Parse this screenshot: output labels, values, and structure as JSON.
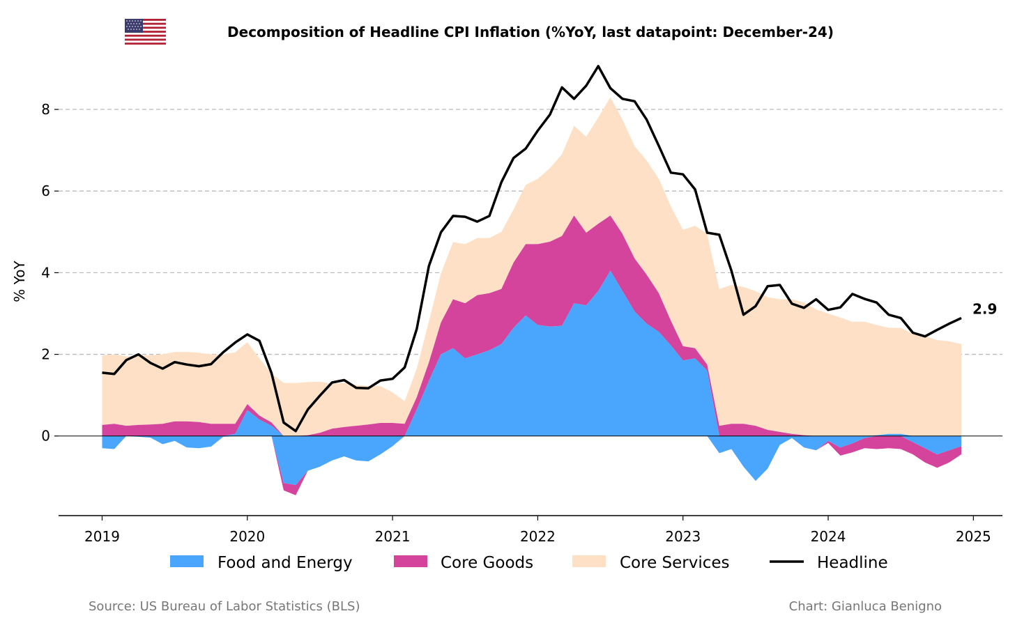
{
  "chart_data": {
    "type": "area",
    "title": "Decomposition of Headline CPI Inflation (%YoY, last datapoint: December-24)",
    "ylabel": "% YoY",
    "xlabel": "",
    "ylim": [
      -1.95,
      9.4
    ],
    "xlim": [
      2018.7,
      2025.2
    ],
    "yticks": [
      0,
      2,
      4,
      6,
      8
    ],
    "xticks": [
      2019,
      2020,
      2021,
      2022,
      2023,
      2024,
      2025
    ],
    "grid": "horizontal dashed",
    "legend_position": "bottom",
    "start": "2019-01",
    "end_label": "2.9",
    "series": [
      {
        "name": "Food and Energy",
        "color": "#4aa6fc",
        "values": [
          -0.3,
          -0.32,
          0.0,
          -0.02,
          -0.04,
          -0.2,
          -0.12,
          -0.28,
          -0.3,
          -0.26,
          -0.02,
          0.05,
          0.63,
          0.4,
          0.25,
          -1.15,
          -1.2,
          -0.85,
          -0.75,
          -0.6,
          -0.5,
          -0.6,
          -0.62,
          -0.45,
          -0.25,
          0.0,
          0.65,
          1.35,
          2.0,
          2.15,
          1.9,
          2.0,
          2.1,
          2.25,
          2.65,
          2.95,
          2.72,
          2.68,
          2.7,
          3.25,
          3.2,
          3.55,
          4.05,
          3.55,
          3.05,
          2.75,
          2.55,
          2.22,
          1.85,
          1.9,
          1.6,
          -0.42,
          -0.32,
          -0.75,
          -1.1,
          -0.8,
          -0.22,
          -0.05,
          -0.28,
          -0.35,
          -0.12,
          -0.28,
          -0.18,
          -0.05,
          0.02,
          0.05,
          0.05,
          -0.15,
          -0.3,
          -0.45,
          -0.35,
          -0.25
        ]
      },
      {
        "name": "Core Goods",
        "color": "#d4449c",
        "values": [
          0.27,
          0.3,
          0.25,
          0.27,
          0.28,
          0.3,
          0.36,
          0.36,
          0.34,
          0.3,
          0.3,
          0.25,
          0.15,
          0.1,
          0.08,
          -0.18,
          -0.25,
          0.02,
          0.08,
          0.18,
          0.22,
          0.25,
          0.28,
          0.32,
          0.32,
          0.3,
          0.3,
          0.45,
          0.78,
          1.2,
          1.35,
          1.45,
          1.4,
          1.35,
          1.6,
          1.75,
          1.98,
          2.08,
          2.2,
          2.15,
          1.78,
          1.65,
          1.35,
          1.4,
          1.3,
          1.2,
          0.95,
          0.6,
          0.35,
          0.25,
          0.15,
          0.25,
          0.3,
          0.3,
          0.25,
          0.15,
          0.1,
          0.05,
          0.02,
          0.0,
          -0.05,
          -0.2,
          -0.22,
          -0.25,
          -0.32,
          -0.3,
          -0.32,
          -0.3,
          -0.35,
          -0.33,
          -0.3,
          -0.2
        ]
      },
      {
        "name": "Core Services",
        "color": "#fde0c5",
        "values": [
          1.7,
          1.7,
          1.7,
          1.7,
          1.7,
          1.7,
          1.7,
          1.7,
          1.7,
          1.7,
          1.7,
          1.75,
          1.52,
          1.4,
          1.2,
          1.3,
          1.3,
          1.3,
          1.25,
          1.1,
          1.08,
          1.0,
          0.95,
          0.9,
          0.75,
          0.55,
          0.7,
          1.0,
          1.2,
          1.4,
          1.45,
          1.4,
          1.35,
          1.4,
          1.3,
          1.45,
          1.6,
          1.8,
          2.0,
          2.2,
          2.35,
          2.6,
          2.9,
          2.8,
          2.75,
          2.8,
          2.8,
          2.8,
          2.85,
          3.0,
          3.2,
          3.35,
          3.4,
          3.35,
          3.3,
          3.25,
          3.25,
          3.3,
          3.25,
          3.1,
          3.0,
          2.9,
          2.8,
          2.8,
          2.7,
          2.6,
          2.6,
          2.5,
          2.45,
          2.35,
          2.32,
          2.25
        ]
      },
      {
        "name": "Headline",
        "color": "#000000",
        "values": [
          1.55,
          1.52,
          1.86,
          2.0,
          1.79,
          1.65,
          1.81,
          1.75,
          1.71,
          1.76,
          2.05,
          2.29,
          2.49,
          2.33,
          1.54,
          0.33,
          0.12,
          0.65,
          0.99,
          1.31,
          1.37,
          1.18,
          1.17,
          1.36,
          1.4,
          1.68,
          2.62,
          4.16,
          4.99,
          5.39,
          5.37,
          5.25,
          5.39,
          6.22,
          6.81,
          7.04,
          7.48,
          7.87,
          8.54,
          8.26,
          8.58,
          9.06,
          8.52,
          8.26,
          8.2,
          7.75,
          7.11,
          6.45,
          6.41,
          6.04,
          4.98,
          4.93,
          4.05,
          2.97,
          3.18,
          3.67,
          3.7,
          3.24,
          3.14,
          3.35,
          3.09,
          3.15,
          3.48,
          3.36,
          3.27,
          2.97,
          2.89,
          2.53,
          2.44,
          2.6,
          2.75,
          2.89
        ]
      }
    ]
  },
  "legend": {
    "items": [
      "Food and Energy",
      "Core Goods",
      "Core Services",
      "Headline"
    ]
  },
  "footer": {
    "source": "Source: US Bureau of Labor Statistics (BLS)",
    "credit": "Chart: Gianluca Benigno"
  },
  "flag": {
    "icon": "us-flag-icon"
  }
}
